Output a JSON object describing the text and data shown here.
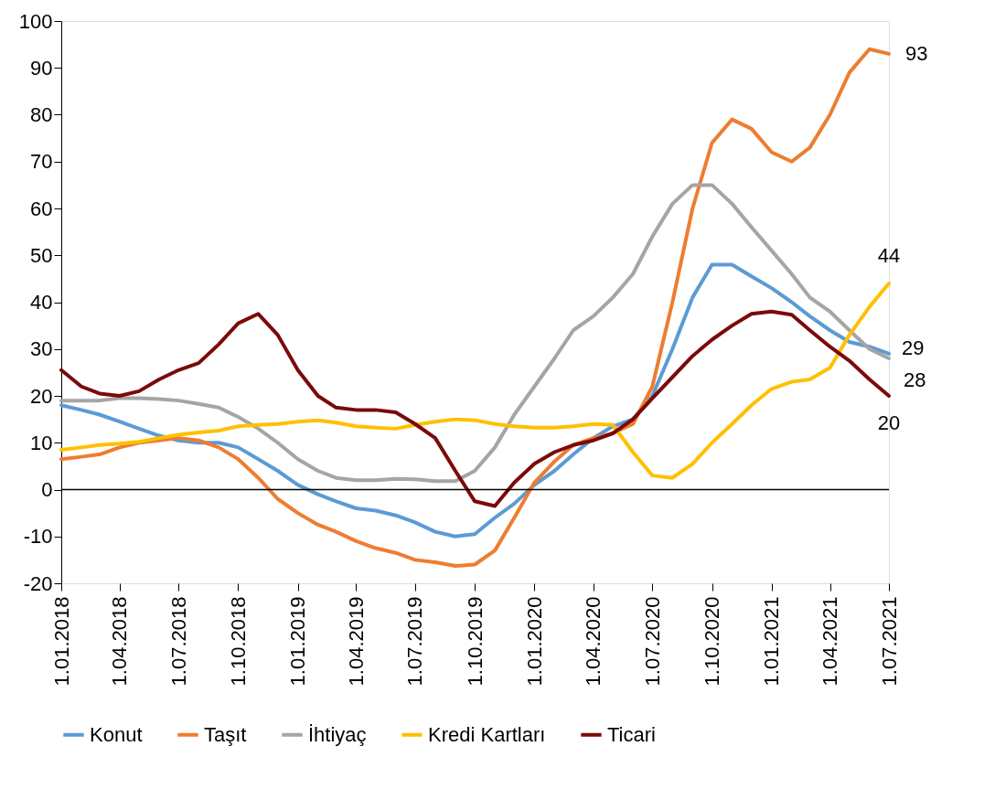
{
  "chart_data": {
    "type": "line",
    "legend": "bottom",
    "grid": false,
    "marker": "none",
    "line_style": "solid",
    "x": [
      "2018-01",
      "2018-02",
      "2018-03",
      "2018-04",
      "2018-05",
      "2018-06",
      "2018-07",
      "2018-08",
      "2018-09",
      "2018-10",
      "2018-11",
      "2018-12",
      "2019-01",
      "2019-02",
      "2019-03",
      "2019-04",
      "2019-05",
      "2019-06",
      "2019-07",
      "2019-08",
      "2019-09",
      "2019-10",
      "2019-11",
      "2019-12",
      "2020-01",
      "2020-02",
      "2020-03",
      "2020-04",
      "2020-05",
      "2020-06",
      "2020-07",
      "2020-08",
      "2020-09",
      "2020-10",
      "2020-11",
      "2020-12",
      "2021-01",
      "2021-02",
      "2021-03",
      "2021-04",
      "2021-05",
      "2021-06",
      "2021-07"
    ],
    "xlim": [
      "2018-01-01",
      "2021-07-01"
    ],
    "xticks": [
      {
        "value": "2018-01-01",
        "label": "1.01.2018"
      },
      {
        "value": "2018-04-01",
        "label": "1.04.2018"
      },
      {
        "value": "2018-07-01",
        "label": "1.07.2018"
      },
      {
        "value": "2018-10-01",
        "label": "1.10.2018"
      },
      {
        "value": "2019-01-01",
        "label": "1.01.2019"
      },
      {
        "value": "2019-04-01",
        "label": "1.04.2019"
      },
      {
        "value": "2019-07-01",
        "label": "1.07.2019"
      },
      {
        "value": "2019-10-01",
        "label": "1.10.2019"
      },
      {
        "value": "2020-01-01",
        "label": "1.01.2020"
      },
      {
        "value": "2020-04-01",
        "label": "1.04.2020"
      },
      {
        "value": "2020-07-01",
        "label": "1.07.2020"
      },
      {
        "value": "2020-10-01",
        "label": "1.10.2020"
      },
      {
        "value": "2021-01-01",
        "label": "1.01.2021"
      },
      {
        "value": "2021-04-01",
        "label": "1.04.2021"
      },
      {
        "value": "2021-07-01",
        "label": "1.07.2021"
      }
    ],
    "ylim": [
      -20,
      100
    ],
    "yticks": [
      -20,
      -10,
      0,
      10,
      20,
      30,
      40,
      50,
      60,
      70,
      80,
      90,
      100
    ],
    "ref_lines": [
      {
        "axis": "y",
        "value": 0,
        "color": "#000000"
      }
    ],
    "series": [
      {
        "name": "Konut",
        "color": "#5b9bd5",
        "values": [
          18,
          17,
          16,
          14.5,
          13,
          11.5,
          10.5,
          10,
          10,
          9,
          6.5,
          4,
          1,
          -1,
          -2.5,
          -4,
          -4.5,
          -5.5,
          -7,
          -9,
          -10,
          -9.5,
          -6,
          -3,
          1,
          4,
          7.5,
          11,
          13.5,
          15,
          20,
          30,
          41,
          48,
          48,
          45.5,
          43,
          40,
          37,
          34,
          31.5,
          30.5,
          29
        ],
        "value_labels": [
          null,
          null,
          null,
          null,
          null,
          null,
          null,
          null,
          null,
          null,
          null,
          null,
          null,
          null,
          null,
          null,
          null,
          null,
          null,
          null,
          null,
          null,
          null,
          null,
          null,
          null,
          null,
          null,
          null,
          null,
          null,
          null,
          null,
          null,
          null,
          null,
          null,
          null,
          null,
          null,
          null,
          null,
          "29"
        ]
      },
      {
        "name": "Taşıt",
        "color": "#ed7d31",
        "values": [
          6.5,
          7,
          7.5,
          9,
          10,
          10.5,
          11,
          10.5,
          9,
          6.5,
          2.5,
          -2,
          -5,
          -7.5,
          -9,
          -11,
          -12.5,
          -13.5,
          -15,
          -15.5,
          -16.3,
          -16,
          -13,
          -6,
          1.5,
          6,
          9.5,
          11,
          12,
          14,
          22,
          40,
          60,
          74,
          79,
          77,
          72,
          70,
          73,
          80,
          89,
          94,
          93
        ],
        "value_labels": [
          null,
          null,
          null,
          null,
          null,
          null,
          null,
          null,
          null,
          null,
          null,
          null,
          null,
          null,
          null,
          null,
          null,
          null,
          null,
          null,
          null,
          null,
          null,
          null,
          null,
          null,
          null,
          null,
          null,
          null,
          null,
          null,
          null,
          null,
          null,
          null,
          null,
          null,
          null,
          null,
          null,
          null,
          "93"
        ]
      },
      {
        "name": "İhtiyaç",
        "color": "#a5a5a5",
        "values": [
          19,
          19,
          19,
          19.5,
          19.5,
          19.3,
          19,
          18.3,
          17.5,
          15.5,
          13,
          10,
          6.5,
          4,
          2.5,
          2,
          2,
          2.3,
          2.2,
          1.8,
          1.8,
          4,
          9,
          16,
          22,
          28,
          34,
          37,
          41,
          46,
          54,
          61,
          65,
          65,
          61,
          56,
          51,
          46,
          41,
          38,
          34,
          30,
          28
        ],
        "value_labels": [
          null,
          null,
          null,
          null,
          null,
          null,
          null,
          null,
          null,
          null,
          null,
          null,
          null,
          null,
          null,
          null,
          null,
          null,
          null,
          null,
          null,
          null,
          null,
          null,
          null,
          null,
          null,
          null,
          null,
          null,
          null,
          null,
          null,
          null,
          null,
          null,
          null,
          null,
          null,
          null,
          null,
          null,
          "28"
        ]
      },
      {
        "name": "Kredi Kartları",
        "color": "#ffc000",
        "values": [
          8.5,
          9,
          9.5,
          9.8,
          10.2,
          11,
          11.7,
          12.2,
          12.6,
          13.5,
          13.8,
          14,
          14.5,
          14.8,
          14.3,
          13.5,
          13.2,
          13,
          13.8,
          14.5,
          15,
          14.8,
          14,
          13.5,
          13.2,
          13.2,
          13.5,
          14,
          13.8,
          8,
          3,
          2.5,
          5.5,
          10,
          14,
          18,
          21.5,
          23,
          23.5,
          26,
          33,
          39,
          44
        ],
        "value_labels": [
          null,
          null,
          null,
          null,
          null,
          null,
          null,
          null,
          null,
          null,
          null,
          null,
          null,
          null,
          null,
          null,
          null,
          null,
          null,
          null,
          null,
          null,
          null,
          null,
          null,
          null,
          null,
          null,
          null,
          null,
          null,
          null,
          null,
          null,
          null,
          null,
          null,
          null,
          null,
          null,
          null,
          null,
          "44"
        ]
      },
      {
        "name": "Ticari",
        "color": "#7b0a0a",
        "values": [
          25.5,
          22,
          20.5,
          20,
          21,
          23.5,
          25.5,
          27,
          31,
          35.5,
          37.5,
          33,
          25.5,
          20,
          17.5,
          17,
          17,
          16.5,
          14,
          11,
          4,
          -2.5,
          -3.5,
          1.5,
          5.5,
          8,
          9.5,
          10.5,
          12,
          15,
          19.5,
          24,
          28.5,
          32,
          35,
          37.5,
          38,
          37.3,
          34,
          30.5,
          27.5,
          23.5,
          20
        ],
        "value_labels": [
          null,
          null,
          null,
          null,
          null,
          null,
          null,
          null,
          null,
          null,
          null,
          null,
          null,
          null,
          null,
          null,
          null,
          null,
          null,
          null,
          null,
          null,
          null,
          null,
          null,
          null,
          null,
          null,
          null,
          null,
          null,
          null,
          null,
          null,
          null,
          null,
          null,
          null,
          null,
          null,
          null,
          null,
          "20"
        ]
      }
    ]
  }
}
